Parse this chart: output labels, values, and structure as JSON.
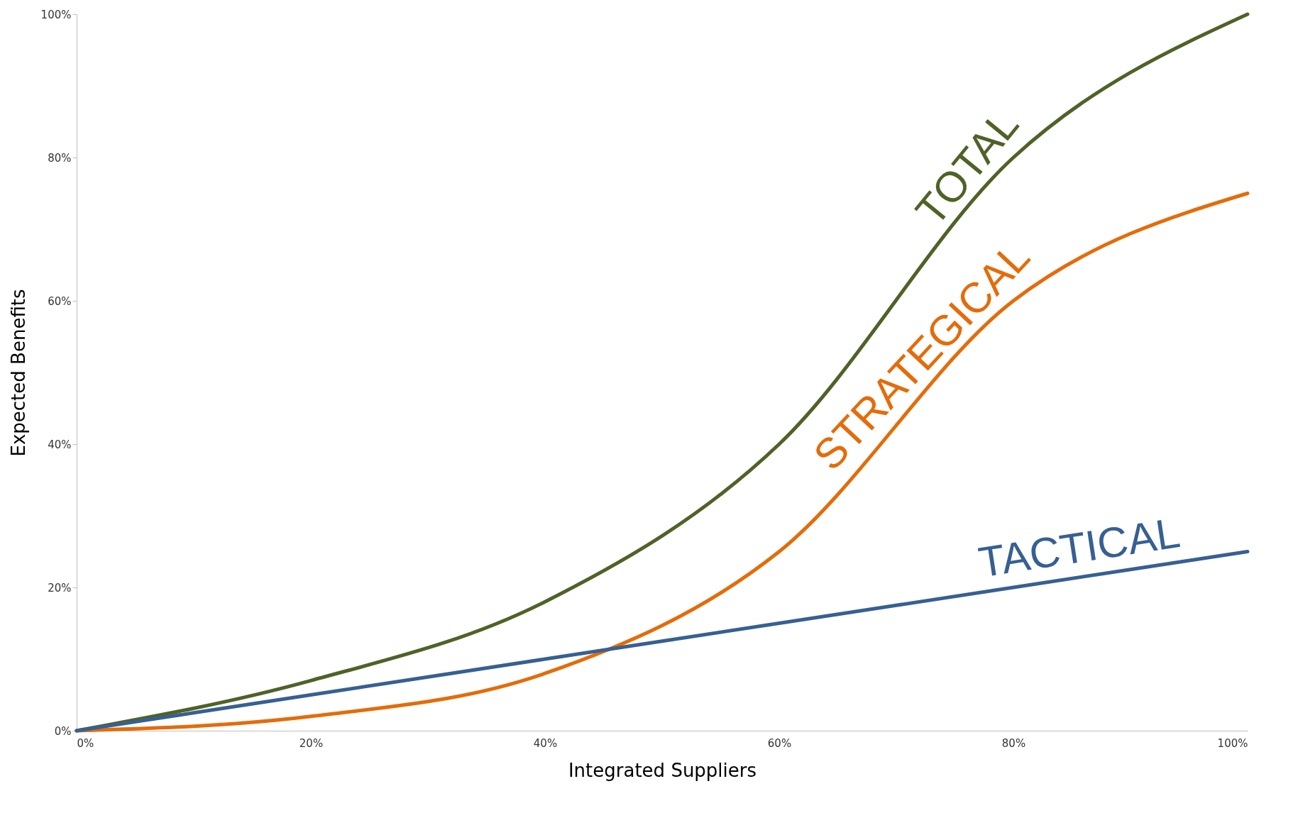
{
  "chart_data": {
    "type": "line",
    "xlabel": "Integrated Suppliers",
    "ylabel": "Expected Benefits",
    "x": [
      0,
      20,
      40,
      60,
      80,
      100
    ],
    "series": [
      {
        "name": "TOTAL",
        "color": "#4f6228",
        "values": [
          0,
          7,
          18,
          40,
          80,
          100
        ]
      },
      {
        "name": "STRATEGICAL",
        "color": "#e46c0a",
        "values": [
          0,
          2,
          8,
          25,
          60,
          75
        ]
      },
      {
        "name": "TACTICAL",
        "color": "#376092",
        "values": [
          0,
          5,
          10,
          15,
          20,
          25
        ]
      }
    ],
    "xlim": [
      0,
      100
    ],
    "ylim": [
      0,
      100
    ],
    "xticks": [
      {
        "value": 0,
        "label": "0%"
      },
      {
        "value": 20,
        "label": "20%"
      },
      {
        "value": 40,
        "label": "40%"
      },
      {
        "value": 60,
        "label": "60%"
      },
      {
        "value": 80,
        "label": "80%"
      },
      {
        "value": 100,
        "label": "100%"
      }
    ],
    "yticks": [
      {
        "value": 0,
        "label": "0%"
      },
      {
        "value": 20,
        "label": "20%"
      },
      {
        "value": 40,
        "label": "40%"
      },
      {
        "value": 60,
        "label": "60%"
      },
      {
        "value": 80,
        "label": "80%"
      },
      {
        "value": 100,
        "label": "100%"
      }
    ],
    "grid": false,
    "legend": false,
    "marker": "none",
    "line_style": "solid"
  }
}
